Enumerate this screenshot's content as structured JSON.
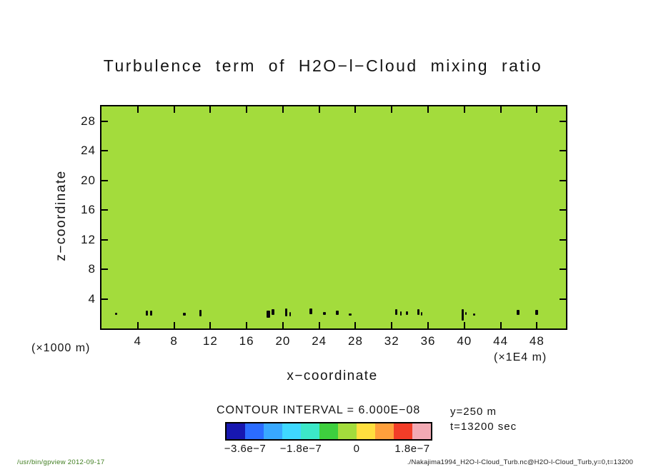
{
  "chart_data": {
    "type": "heatmap",
    "title": "Turbulence term of H2O−l−Cloud mixing ratio",
    "xlabel": "x−coordinate",
    "ylabel": "z−coordinate",
    "x_unit": "(×1E4 m)",
    "y_unit": "(×1000 m)",
    "xlim": [
      0,
      51.2
    ],
    "ylim": [
      0,
      30
    ],
    "x_ticks": [
      4,
      8,
      12,
      16,
      20,
      24,
      28,
      32,
      36,
      40,
      44,
      48
    ],
    "y_ticks": [
      4,
      8,
      12,
      16,
      20,
      24,
      28
    ],
    "grid": false,
    "fill_color": "#a3dc3c",
    "contour_interval": 6e-08,
    "contour_interval_label": "CONTOUR INTERVAL = 6.000E−08",
    "colorbar": {
      "colors": [
        "#1717b0",
        "#2b6cff",
        "#38a8ff",
        "#3fd8ff",
        "#3ce8c8",
        "#3ecf3e",
        "#a3dc3c",
        "#ffdf3f",
        "#ffa03c",
        "#f23d28",
        "#f2aab4"
      ],
      "tick_labels": [
        "−3.6e−7",
        "−1.8e−7",
        "0",
        "1.8e−7"
      ],
      "label_boundaries": [
        1,
        4,
        7,
        10
      ]
    },
    "annotations": [
      "y=250 m",
      "t=13200 sec"
    ],
    "features": [
      {
        "x": 1.6,
        "z": 2.0,
        "w": 3,
        "h": 3
      },
      {
        "x": 5.0,
        "z": 2.1,
        "w": 3,
        "h": 7
      },
      {
        "x": 5.5,
        "z": 2.1,
        "w": 3,
        "h": 7
      },
      {
        "x": 9.1,
        "z": 1.9,
        "w": 4,
        "h": 4
      },
      {
        "x": 10.9,
        "z": 2.1,
        "w": 3,
        "h": 9
      },
      {
        "x": 18.4,
        "z": 1.9,
        "w": 5,
        "h": 10
      },
      {
        "x": 18.9,
        "z": 2.2,
        "w": 4,
        "h": 8
      },
      {
        "x": 20.4,
        "z": 2.2,
        "w": 3,
        "h": 11
      },
      {
        "x": 20.8,
        "z": 1.9,
        "w": 2,
        "h": 6
      },
      {
        "x": 23.1,
        "z": 2.3,
        "w": 4,
        "h": 8
      },
      {
        "x": 24.6,
        "z": 2.0,
        "w": 4,
        "h": 4
      },
      {
        "x": 26.0,
        "z": 2.1,
        "w": 4,
        "h": 6
      },
      {
        "x": 27.4,
        "z": 1.9,
        "w": 4,
        "h": 3
      },
      {
        "x": 32.5,
        "z": 2.2,
        "w": 3,
        "h": 8
      },
      {
        "x": 33.0,
        "z": 2.0,
        "w": 2,
        "h": 6
      },
      {
        "x": 33.7,
        "z": 2.1,
        "w": 3,
        "h": 5
      },
      {
        "x": 34.9,
        "z": 2.2,
        "w": 3,
        "h": 8
      },
      {
        "x": 35.3,
        "z": 2.0,
        "w": 2,
        "h": 5
      },
      {
        "x": 39.8,
        "z": 1.8,
        "w": 3,
        "h": 16
      },
      {
        "x": 40.2,
        "z": 2.0,
        "w": 2,
        "h": 4
      },
      {
        "x": 41.1,
        "z": 1.9,
        "w": 3,
        "h": 3
      },
      {
        "x": 45.9,
        "z": 2.2,
        "w": 4,
        "h": 7
      },
      {
        "x": 48.0,
        "z": 2.2,
        "w": 4,
        "h": 7
      }
    ]
  },
  "footer": {
    "left": "/usr/bin/gpview  2012-09-17",
    "right": "./Nakajima1994_H2O-l-Cloud_Turb.nc@H2O-l-Cloud_Turb,y=0,t=13200"
  }
}
